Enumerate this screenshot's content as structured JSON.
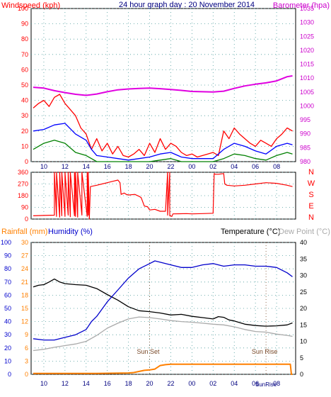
{
  "chart_data": [
    {
      "type": "line",
      "title": "24 hour graph day : 20 November 2014",
      "left_axis_title": "Windspeed (kph)",
      "right_axis_title": "Barometer (hpa)",
      "x_tick_labels": [
        "10",
        "12",
        "14",
        "16",
        "18",
        "20",
        "22",
        "00",
        "02",
        "04",
        "06",
        "08"
      ],
      "left_ticks": [
        "0",
        "10",
        "20",
        "30",
        "40",
        "50",
        "60",
        "70",
        "80",
        "90",
        "100"
      ],
      "right_ticks": [
        "980",
        "985",
        "990",
        "995",
        "1000",
        "1005",
        "1010",
        "1015",
        "1020",
        "1025",
        "1030",
        "1035"
      ],
      "ylim_left": [
        0,
        100
      ],
      "ylim_right": [
        980,
        1035
      ],
      "grid": true,
      "colors": {
        "gust": "#ff0000",
        "average": "#0000ff",
        "lull": "#008000",
        "barometer": "#e000e0",
        "left_axis": "#ff0000",
        "right_axis": "#cc00cc"
      },
      "series": [
        {
          "key": "gust",
          "x": [
            9.0,
            9.5,
            10.0,
            10.5,
            11.0,
            11.5,
            12.0,
            12.5,
            13.0,
            13.5,
            14.0,
            14.5,
            15.0,
            15.5,
            16.0,
            16.5,
            17.0,
            17.5,
            18.0,
            18.5,
            19.0,
            19.5,
            20.0,
            20.5,
            21.0,
            21.5,
            22.0,
            22.5,
            23.0,
            23.5,
            24.0,
            24.5,
            25.0,
            25.5,
            26.0,
            26.5,
            27.0,
            27.5,
            28.0,
            28.5,
            29.0,
            29.5,
            30.0,
            30.5,
            31.0,
            31.5,
            32.0,
            32.5,
            33.0,
            33.5
          ],
          "y": [
            35,
            38,
            40,
            36,
            42,
            44,
            38,
            34,
            30,
            22,
            18,
            8,
            15,
            7,
            12,
            5,
            10,
            4,
            3,
            5,
            8,
            4,
            12,
            6,
            15,
            8,
            12,
            10,
            6,
            4,
            5,
            3,
            4,
            5,
            6,
            4,
            20,
            15,
            22,
            18,
            15,
            12,
            10,
            14,
            12,
            10,
            15,
            18,
            22,
            20
          ]
        },
        {
          "key": "average",
          "x": [
            9.0,
            10.0,
            11.0,
            12.0,
            13.0,
            14.0,
            14.5,
            15.0,
            16.0,
            17.0,
            18.0,
            19.0,
            20.0,
            21.0,
            22.0,
            23.0,
            24.0,
            25.0,
            26.0,
            27.0,
            28.0,
            29.0,
            30.0,
            31.0,
            32.0,
            33.0,
            33.5
          ],
          "y": [
            20,
            21,
            24,
            25,
            18,
            14,
            8,
            4,
            3,
            2,
            1,
            2,
            3,
            5,
            6,
            3,
            2,
            2,
            2,
            8,
            12,
            10,
            7,
            5,
            10,
            12,
            11
          ]
        },
        {
          "key": "lull",
          "x": [
            9.0,
            10.0,
            11.0,
            12.0,
            13.0,
            14.0,
            14.5,
            15.0,
            16.0,
            17.0,
            18.0,
            19.0,
            20.0,
            21.0,
            22.0,
            23.0,
            24.0,
            25.0,
            26.0,
            27.0,
            28.0,
            29.0,
            30.0,
            31.0,
            32.0,
            33.0,
            33.5
          ],
          "y": [
            8,
            12,
            14,
            12,
            6,
            4,
            2,
            0,
            0,
            0,
            0,
            0,
            0,
            1,
            2,
            0,
            0,
            0,
            0,
            2,
            5,
            4,
            2,
            1,
            4,
            6,
            5
          ]
        },
        {
          "key": "barometer",
          "axis": "right",
          "x": [
            9.0,
            10.0,
            11.0,
            12.0,
            13.0,
            14.0,
            15.0,
            16.0,
            17.0,
            18.0,
            19.0,
            20.0,
            21.0,
            22.0,
            23.0,
            24.0,
            25.0,
            26.0,
            27.0,
            28.0,
            29.0,
            30.0,
            31.0,
            32.0,
            33.0,
            33.5
          ],
          "y": [
            1006.7,
            1006.4,
            1005.5,
            1004.8,
            1004.2,
            1003.8,
            1004.3,
            1005.1,
            1005.8,
            1006.1,
            1006.3,
            1006.4,
            1006.2,
            1005.9,
            1005.6,
            1005.2,
            1005.1,
            1005.0,
            1005.3,
            1006.3,
            1007.2,
            1007.8,
            1008.3,
            1009.0,
            1010.5,
            1010.8
          ]
        }
      ]
    },
    {
      "type": "line",
      "right_labels": [
        "N",
        "W",
        "S",
        "E",
        "N"
      ],
      "left_ticks": [
        "0",
        "90",
        "180",
        "270",
        "360"
      ],
      "x_tick_labels": [
        "10",
        "12",
        "14",
        "16",
        "18",
        "20",
        "22",
        "00",
        "02",
        "04",
        "06",
        "08"
      ],
      "ylim": [
        0,
        360
      ],
      "grid": true,
      "colors": {
        "direction": "#ff0000",
        "axis": "#ff0000"
      },
      "series": [
        {
          "key": "direction",
          "x": [
            9.0,
            10.0,
            11.0,
            11.0,
            11.2,
            11.2,
            11.5,
            11.5,
            11.7,
            11.7,
            12.0,
            12.0,
            12.3,
            12.3,
            12.5,
            12.5,
            12.9,
            12.9,
            13.0,
            13.0,
            13.2,
            13.2,
            13.6,
            13.6,
            14.1,
            14.1,
            14.2,
            14.2,
            14.3,
            14.4,
            15.0,
            15.5,
            16.0,
            16.5,
            17.0,
            17.2,
            17.3,
            17.6,
            17.8,
            18.0,
            18.6,
            19.0,
            19.2,
            19.5,
            19.8,
            20.0,
            20.5,
            21.0,
            21.5,
            21.7,
            21.7,
            21.9,
            21.9,
            22.1,
            22.2,
            23.5,
            24.0,
            25.0,
            26.0,
            26.1,
            26.2,
            26.5,
            27.0,
            27.1,
            27.3,
            28.0,
            29.0,
            30.0,
            31.0,
            32.0,
            33.0,
            33.5
          ],
          "y": [
            25,
            28,
            30,
            360,
            20,
            360,
            15,
            360,
            25,
            360,
            20,
            360,
            30,
            360,
            18,
            360,
            25,
            360,
            20,
            360,
            15,
            360,
            30,
            360,
            20,
            360,
            30,
            360,
            0,
            250,
            260,
            270,
            280,
            290,
            300,
            280,
            190,
            200,
            190,
            185,
            190,
            175,
            165,
            100,
            95,
            70,
            75,
            60,
            60,
            360,
            30,
            360,
            25,
            20,
            40,
            42,
            40,
            42,
            45,
            350,
            345,
            345,
            350,
            270,
            260,
            255,
            260,
            270,
            280,
            275,
            260,
            250
          ]
        }
      ]
    },
    {
      "type": "line",
      "rainfall_title": "Rainfall (mm)",
      "humidity_title": "Humidity (%)",
      "temperature_title": "Temperature (°C)",
      "dewpoint_title": "Dew Point (°C)",
      "x_tick_labels": [
        "10",
        "12",
        "14",
        "16",
        "18",
        "20",
        "22",
        "00",
        "02",
        "04",
        "06",
        "08"
      ],
      "rain_ticks": [
        "0",
        "3",
        "6",
        "9",
        "12",
        "15",
        "18",
        "21",
        "24",
        "27",
        "30"
      ],
      "humidity_ticks": [
        "0",
        "10",
        "20",
        "30",
        "40",
        "50",
        "60",
        "70",
        "80",
        "90",
        "100"
      ],
      "temp_ticks": [
        "0",
        "5",
        "10",
        "15",
        "20",
        "25",
        "30",
        "35",
        "40"
      ],
      "ylim_rain": [
        0,
        30
      ],
      "ylim_humidity": [
        0,
        100
      ],
      "ylim_temp": [
        0,
        40
      ],
      "grid": true,
      "annotations": [
        {
          "label": "Sun Set",
          "x": 20.0
        },
        {
          "label": "Sun Rise",
          "x": 31.0
        }
      ],
      "sun_label": "SunRise",
      "colors": {
        "rainfall": "#ff8000",
        "humidity": "#0000cc",
        "temperature": "#000000",
        "dewpoint": "#aaaaaa",
        "rain_axis": "#ff8000",
        "humidity_axis": "#0000cc",
        "temp_axis": "#000000",
        "dew_axis": "#aaaaaa"
      },
      "series": [
        {
          "key": "temperature",
          "axis": "temp",
          "x": [
            9.0,
            9.5,
            10.0,
            10.5,
            11.0,
            11.5,
            12.0,
            13.0,
            14.0,
            15.0,
            16.0,
            17.0,
            18.0,
            19.0,
            20.0,
            21.0,
            22.0,
            23.0,
            24.0,
            25.0,
            26.0,
            26.5,
            27.0,
            27.5,
            28.0,
            29.0,
            30.0,
            31.0,
            32.0,
            33.0,
            33.5
          ],
          "y": [
            26.5,
            27.0,
            27.2,
            28.0,
            28.9,
            28.0,
            27.5,
            27.2,
            27.0,
            26.0,
            24.2,
            22.5,
            20.5,
            19.3,
            19.0,
            18.6,
            18.0,
            18.2,
            17.6,
            17.2,
            16.8,
            17.5,
            17.3,
            16.5,
            16.2,
            15.2,
            14.8,
            14.6,
            14.7,
            15.0,
            15.6
          ]
        },
        {
          "key": "dewpoint",
          "axis": "temp",
          "x": [
            9.0,
            10.0,
            11.0,
            12.0,
            13.0,
            14.0,
            15.0,
            16.0,
            17.0,
            18.0,
            19.0,
            20.0,
            21.0,
            22.0,
            23.0,
            24.0,
            25.0,
            26.0,
            27.0,
            28.0,
            29.0,
            30.0,
            31.0,
            32.0,
            33.0,
            33.5
          ],
          "y": [
            7.2,
            7.6,
            8.2,
            8.7,
            9.2,
            10.0,
            11.8,
            14.0,
            15.5,
            16.8,
            17.4,
            17.2,
            16.8,
            16.3,
            16.0,
            15.8,
            15.5,
            15.2,
            15.0,
            14.4,
            13.6,
            13.0,
            12.8,
            12.2,
            11.8,
            11.5
          ]
        },
        {
          "key": "humidity",
          "axis": "humidity",
          "x": [
            9.0,
            10.0,
            11.0,
            12.0,
            13.0,
            14.0,
            14.5,
            15.0,
            16.0,
            17.0,
            18.0,
            19.0,
            20.0,
            20.5,
            21.0,
            22.0,
            23.0,
            24.0,
            25.0,
            26.0,
            27.0,
            28.0,
            29.0,
            30.0,
            31.0,
            32.0,
            33.0,
            33.5
          ],
          "y": [
            27,
            26,
            26,
            28,
            30,
            34,
            40,
            44,
            55,
            64,
            73,
            80,
            84,
            86,
            85,
            83,
            81,
            81,
            83,
            84,
            82,
            83,
            83,
            82,
            82,
            81,
            77,
            74
          ]
        },
        {
          "key": "rainfall",
          "axis": "rain",
          "x": [
            9.0,
            12.0,
            15.0,
            18.0,
            18.5,
            19.5,
            20.0,
            20.5,
            21.0,
            21.5,
            22.0,
            25.0,
            28.0,
            31.0,
            33.3,
            33.4,
            33.5
          ],
          "y": [
            0.2,
            0.2,
            0.2,
            0.3,
            0.4,
            0.9,
            1.0,
            1.2,
            2.0,
            2.2,
            2.3,
            2.3,
            2.3,
            2.3,
            2.3,
            0.0,
            0.0
          ]
        }
      ]
    }
  ]
}
